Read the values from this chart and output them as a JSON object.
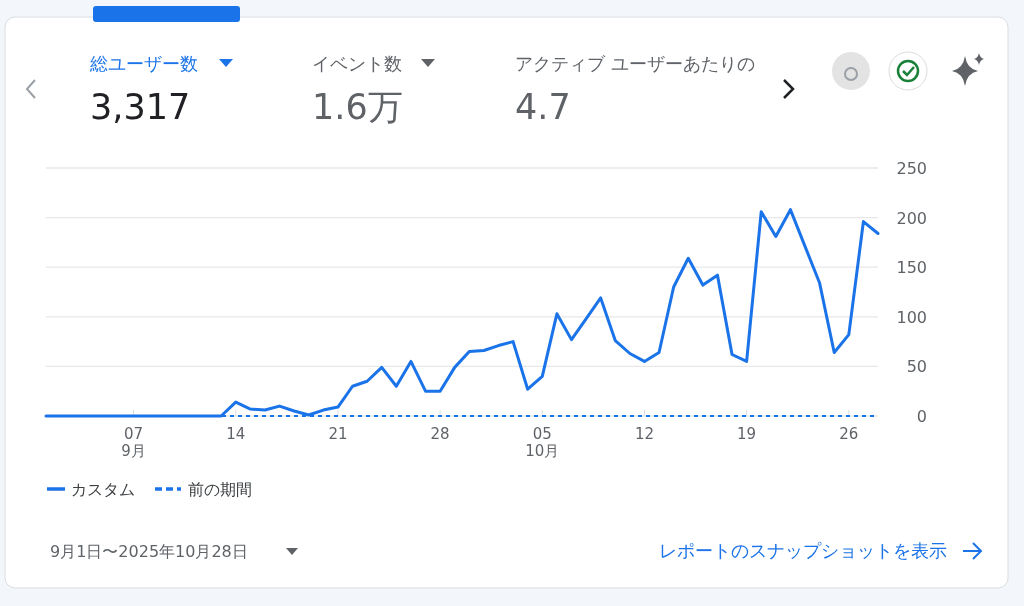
{
  "chart_data": {
    "type": "line",
    "x": [
      "2025-09-01",
      "2025-09-02",
      "2025-09-03",
      "2025-09-04",
      "2025-09-05",
      "2025-09-06",
      "2025-09-07",
      "2025-09-08",
      "2025-09-09",
      "2025-09-10",
      "2025-09-11",
      "2025-09-12",
      "2025-09-13",
      "2025-09-14",
      "2025-09-15",
      "2025-09-16",
      "2025-09-17",
      "2025-09-18",
      "2025-09-19",
      "2025-09-20",
      "2025-09-21",
      "2025-09-22",
      "2025-09-23",
      "2025-09-24",
      "2025-09-25",
      "2025-09-26",
      "2025-09-27",
      "2025-09-28",
      "2025-09-29",
      "2025-09-30",
      "2025-10-01",
      "2025-10-02",
      "2025-10-03",
      "2025-10-04",
      "2025-10-05",
      "2025-10-06",
      "2025-10-07",
      "2025-10-08",
      "2025-10-09",
      "2025-10-10",
      "2025-10-11",
      "2025-10-12",
      "2025-10-13",
      "2025-10-14",
      "2025-10-15",
      "2025-10-16",
      "2025-10-17",
      "2025-10-18",
      "2025-10-19",
      "2025-10-20",
      "2025-10-21",
      "2025-10-22",
      "2025-10-23",
      "2025-10-24",
      "2025-10-25",
      "2025-10-26",
      "2025-10-27",
      "2025-10-28"
    ],
    "series": [
      {
        "name": "前の期間",
        "color": "#1a73e8",
        "line_style": "dashed",
        "values": [
          0,
          0,
          0,
          0,
          0,
          0,
          0,
          0,
          0,
          0,
          0,
          0,
          0,
          0,
          0,
          0,
          0,
          0,
          0,
          0,
          0,
          0,
          0,
          0,
          0,
          0,
          0,
          0,
          0,
          0,
          0,
          0,
          0,
          0,
          0,
          0,
          0,
          0,
          0,
          0,
          0,
          0,
          0,
          0,
          0,
          0,
          0,
          0,
          0,
          0,
          0,
          0,
          0,
          0,
          0,
          0,
          0,
          0
        ]
      },
      {
        "name": "カスタム",
        "color": "#1a73e8",
        "line_style": "solid",
        "values": [
          0,
          0,
          0,
          0,
          0,
          0,
          0,
          0,
          0,
          0,
          0,
          0,
          0,
          14,
          7,
          6,
          10,
          5,
          1,
          6,
          9,
          30,
          35,
          49,
          30,
          55,
          25,
          25,
          49,
          65,
          66,
          71,
          75,
          27,
          40,
          103,
          77,
          98,
          119,
          76,
          63,
          55,
          64,
          130,
          159,
          132,
          142,
          62,
          55,
          206,
          181,
          208,
          171,
          134,
          64,
          82,
          196,
          184
        ]
      }
    ],
    "xlim": [
      "2025-09-01",
      "2025-10-28"
    ],
    "xticks": [
      {
        "value": "2025-09-07",
        "label": "07\n9月"
      },
      {
        "value": "2025-09-14",
        "label": "14"
      },
      {
        "value": "2025-09-21",
        "label": "21"
      },
      {
        "value": "2025-09-28",
        "label": "28"
      },
      {
        "value": "2025-10-05",
        "label": "05\n10月"
      },
      {
        "value": "2025-10-12",
        "label": "12"
      },
      {
        "value": "2025-10-19",
        "label": "19"
      },
      {
        "value": "2025-10-26",
        "label": "26"
      }
    ],
    "ylim": [
      0,
      250
    ],
    "yticks": [
      0,
      50,
      100,
      150,
      200,
      250
    ],
    "grid": "y",
    "legend": "bottom left",
    "marker": "none",
    "annotations": [
      "総ユーザー数",
      "3,317",
      "イベント数",
      "1.6万",
      "アクティブ ユーザーあたりの",
      "4.7",
      "9月1日〜2025年10月28日",
      "レポートのスナップショットを表示"
    ]
  }
}
